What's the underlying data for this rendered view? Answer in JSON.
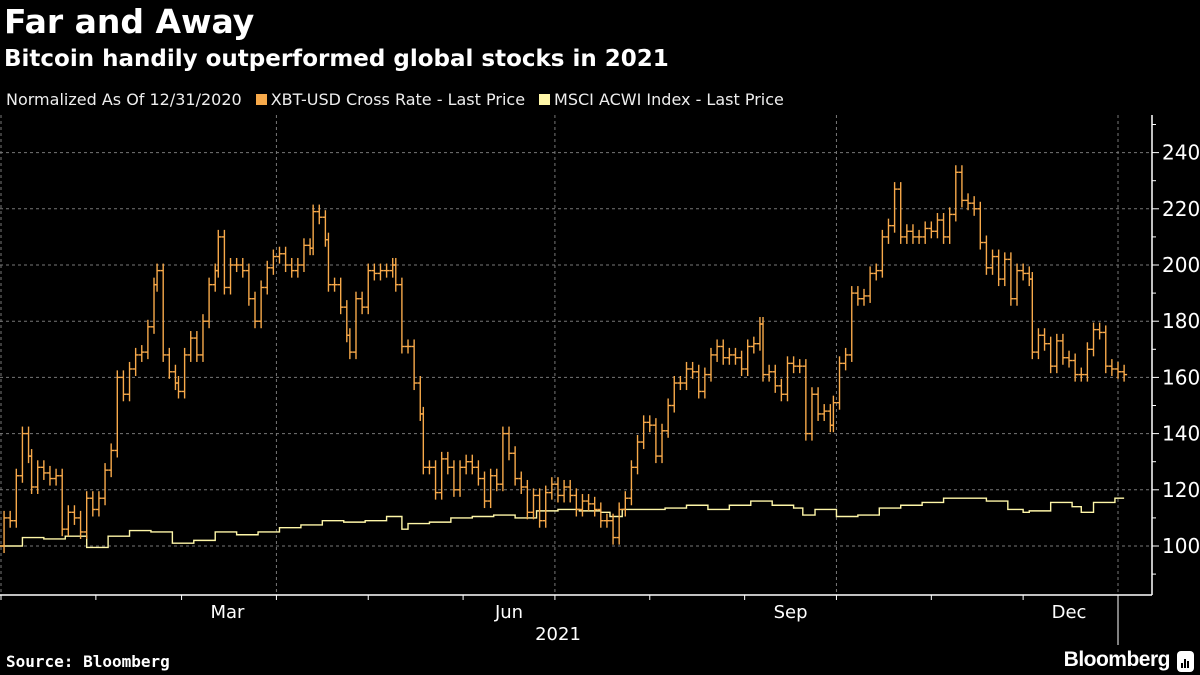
{
  "title": "Far and Away",
  "subtitle": "Bitcoin handily outperformed global stocks in 2021",
  "source": "Source: Bloomberg",
  "brand": "Bloomberg",
  "chart_data": {
    "type": "line",
    "legend_note": "Normalized As Of 12/31/2020",
    "legend_placement": "top-left",
    "grid": true,
    "x_tick_labels": [
      "Mar",
      "Jun",
      "Sep",
      "Dec"
    ],
    "x_year_label": "2021",
    "xlim": [
      "2020-12-31",
      "2022-01-04"
    ],
    "ylim": [
      82,
      253
    ],
    "y_ticks": [
      100,
      120,
      140,
      160,
      180,
      200,
      220,
      240
    ],
    "y_axis_side": "right",
    "series": [
      {
        "name": "XBT-USD Cross Rate - Last Price",
        "color": "#f7a94a",
        "style": "bars",
        "points": [
          [
            "2020-12-31",
            100
          ],
          [
            "2021-01-02",
            110
          ],
          [
            "2021-01-04",
            109
          ],
          [
            "2021-01-06",
            125
          ],
          [
            "2021-01-08",
            140
          ],
          [
            "2021-01-10",
            132
          ],
          [
            "2021-01-11",
            121
          ],
          [
            "2021-01-13",
            128
          ],
          [
            "2021-01-15",
            126
          ],
          [
            "2021-01-17",
            124
          ],
          [
            "2021-01-19",
            125
          ],
          [
            "2021-01-21",
            106
          ],
          [
            "2021-01-23",
            112
          ],
          [
            "2021-01-25",
            110
          ],
          [
            "2021-01-27",
            105
          ],
          [
            "2021-01-29",
            117
          ],
          [
            "2021-01-31",
            113
          ],
          [
            "2021-02-02",
            117
          ],
          [
            "2021-02-04",
            127
          ],
          [
            "2021-02-06",
            134
          ],
          [
            "2021-02-08",
            160
          ],
          [
            "2021-02-10",
            154
          ],
          [
            "2021-02-12",
            163
          ],
          [
            "2021-02-14",
            168
          ],
          [
            "2021-02-16",
            169
          ],
          [
            "2021-02-18",
            178
          ],
          [
            "2021-02-20",
            193
          ],
          [
            "2021-02-21",
            198
          ],
          [
            "2021-02-23",
            168
          ],
          [
            "2021-02-25",
            162
          ],
          [
            "2021-02-27",
            158
          ],
          [
            "2021-02-28",
            155
          ],
          [
            "2021-03-02",
            168
          ],
          [
            "2021-03-04",
            174
          ],
          [
            "2021-03-06",
            168
          ],
          [
            "2021-03-08",
            180
          ],
          [
            "2021-03-10",
            193
          ],
          [
            "2021-03-12",
            198
          ],
          [
            "2021-03-13",
            210
          ],
          [
            "2021-03-15",
            192
          ],
          [
            "2021-03-17",
            200
          ],
          [
            "2021-03-19",
            200
          ],
          [
            "2021-03-21",
            198
          ],
          [
            "2021-03-23",
            188
          ],
          [
            "2021-03-25",
            180
          ],
          [
            "2021-03-27",
            192
          ],
          [
            "2021-03-29",
            199
          ],
          [
            "2021-03-31",
            203
          ],
          [
            "2021-04-02",
            204
          ],
          [
            "2021-04-04",
            200
          ],
          [
            "2021-04-06",
            198
          ],
          [
            "2021-04-08",
            200
          ],
          [
            "2021-04-10",
            207
          ],
          [
            "2021-04-12",
            206
          ],
          [
            "2021-04-13",
            219
          ],
          [
            "2021-04-15",
            217
          ],
          [
            "2021-04-17",
            209
          ],
          [
            "2021-04-18",
            193
          ],
          [
            "2021-04-20",
            193
          ],
          [
            "2021-04-22",
            185
          ],
          [
            "2021-04-24",
            175
          ],
          [
            "2021-04-25",
            169
          ],
          [
            "2021-04-27",
            188
          ],
          [
            "2021-04-29",
            185
          ],
          [
            "2021-05-01",
            198
          ],
          [
            "2021-05-03",
            197
          ],
          [
            "2021-05-05",
            198
          ],
          [
            "2021-05-07",
            198
          ],
          [
            "2021-05-09",
            200
          ],
          [
            "2021-05-10",
            193
          ],
          [
            "2021-05-12",
            171
          ],
          [
            "2021-05-14",
            171
          ],
          [
            "2021-05-16",
            158
          ],
          [
            "2021-05-18",
            147
          ],
          [
            "2021-05-19",
            128
          ],
          [
            "2021-05-21",
            128
          ],
          [
            "2021-05-23",
            119
          ],
          [
            "2021-05-25",
            131
          ],
          [
            "2021-05-27",
            128
          ],
          [
            "2021-05-29",
            120
          ],
          [
            "2021-05-31",
            128
          ],
          [
            "2021-06-02",
            130
          ],
          [
            "2021-06-04",
            128
          ],
          [
            "2021-06-06",
            124
          ],
          [
            "2021-06-08",
            116
          ],
          [
            "2021-06-10",
            125
          ],
          [
            "2021-06-12",
            122
          ],
          [
            "2021-06-14",
            140
          ],
          [
            "2021-06-16",
            133
          ],
          [
            "2021-06-18",
            124
          ],
          [
            "2021-06-20",
            121
          ],
          [
            "2021-06-22",
            112
          ],
          [
            "2021-06-24",
            118
          ],
          [
            "2021-06-26",
            109
          ],
          [
            "2021-06-28",
            119
          ],
          [
            "2021-06-30",
            122
          ],
          [
            "2021-07-02",
            118
          ],
          [
            "2021-07-04",
            121
          ],
          [
            "2021-07-06",
            118
          ],
          [
            "2021-07-08",
            113
          ],
          [
            "2021-07-10",
            116
          ],
          [
            "2021-07-12",
            115
          ],
          [
            "2021-07-14",
            113
          ],
          [
            "2021-07-16",
            109
          ],
          [
            "2021-07-18",
            109
          ],
          [
            "2021-07-20",
            103
          ],
          [
            "2021-07-22",
            113
          ],
          [
            "2021-07-24",
            117
          ],
          [
            "2021-07-26",
            128
          ],
          [
            "2021-07-28",
            137
          ],
          [
            "2021-07-30",
            144
          ],
          [
            "2021-08-01",
            143
          ],
          [
            "2021-08-03",
            132
          ],
          [
            "2021-08-05",
            141
          ],
          [
            "2021-08-07",
            150
          ],
          [
            "2021-08-09",
            158
          ],
          [
            "2021-08-11",
            158
          ],
          [
            "2021-08-13",
            163
          ],
          [
            "2021-08-15",
            162
          ],
          [
            "2021-08-17",
            155
          ],
          [
            "2021-08-19",
            161
          ],
          [
            "2021-08-21",
            168
          ],
          [
            "2021-08-23",
            171
          ],
          [
            "2021-08-25",
            167
          ],
          [
            "2021-08-27",
            168
          ],
          [
            "2021-08-29",
            167
          ],
          [
            "2021-08-31",
            163
          ],
          [
            "2021-09-02",
            171
          ],
          [
            "2021-09-04",
            172
          ],
          [
            "2021-09-06",
            179
          ],
          [
            "2021-09-07",
            161
          ],
          [
            "2021-09-09",
            162
          ],
          [
            "2021-09-11",
            157
          ],
          [
            "2021-09-13",
            154
          ],
          [
            "2021-09-15",
            165
          ],
          [
            "2021-09-17",
            164
          ],
          [
            "2021-09-19",
            164
          ],
          [
            "2021-09-21",
            140
          ],
          [
            "2021-09-23",
            154
          ],
          [
            "2021-09-25",
            147
          ],
          [
            "2021-09-27",
            148
          ],
          [
            "2021-09-29",
            143
          ],
          [
            "2021-09-30",
            151
          ],
          [
            "2021-10-02",
            165
          ],
          [
            "2021-10-04",
            168
          ],
          [
            "2021-10-06",
            190
          ],
          [
            "2021-10-08",
            188
          ],
          [
            "2021-10-10",
            189
          ],
          [
            "2021-10-12",
            197
          ],
          [
            "2021-10-14",
            198
          ],
          [
            "2021-10-16",
            210
          ],
          [
            "2021-10-18",
            214
          ],
          [
            "2021-10-20",
            227
          ],
          [
            "2021-10-22",
            210
          ],
          [
            "2021-10-24",
            212
          ],
          [
            "2021-10-26",
            210
          ],
          [
            "2021-10-28",
            210
          ],
          [
            "2021-10-30",
            213
          ],
          [
            "2021-11-01",
            212
          ],
          [
            "2021-11-03",
            216
          ],
          [
            "2021-11-05",
            210
          ],
          [
            "2021-11-07",
            218
          ],
          [
            "2021-11-09",
            233
          ],
          [
            "2021-11-11",
            223
          ],
          [
            "2021-11-13",
            222
          ],
          [
            "2021-11-15",
            220
          ],
          [
            "2021-11-17",
            208
          ],
          [
            "2021-11-19",
            199
          ],
          [
            "2021-11-21",
            203
          ],
          [
            "2021-11-23",
            195
          ],
          [
            "2021-11-25",
            202
          ],
          [
            "2021-11-27",
            188
          ],
          [
            "2021-11-29",
            198
          ],
          [
            "2021-12-01",
            197
          ],
          [
            "2021-12-03",
            195
          ],
          [
            "2021-12-04",
            169
          ],
          [
            "2021-12-06",
            175
          ],
          [
            "2021-12-08",
            172
          ],
          [
            "2021-12-10",
            164
          ],
          [
            "2021-12-12",
            173
          ],
          [
            "2021-12-14",
            167
          ],
          [
            "2021-12-16",
            166
          ],
          [
            "2021-12-18",
            161
          ],
          [
            "2021-12-20",
            161
          ],
          [
            "2021-12-22",
            170
          ],
          [
            "2021-12-24",
            177
          ],
          [
            "2021-12-26",
            176
          ],
          [
            "2021-12-28",
            164
          ],
          [
            "2021-12-30",
            163
          ],
          [
            "2022-01-01",
            162
          ],
          [
            "2022-01-03",
            161
          ]
        ]
      },
      {
        "name": "MSCI ACWI Index - Last Price",
        "color": "#fff7a8",
        "style": "step",
        "points": [
          [
            "2020-12-31",
            100
          ],
          [
            "2021-01-08",
            103
          ],
          [
            "2021-01-15",
            102.5
          ],
          [
            "2021-01-22",
            103.5
          ],
          [
            "2021-01-29",
            99.5
          ],
          [
            "2021-02-05",
            103.5
          ],
          [
            "2021-02-12",
            105.5
          ],
          [
            "2021-02-19",
            105
          ],
          [
            "2021-02-26",
            101
          ],
          [
            "2021-03-05",
            102
          ],
          [
            "2021-03-12",
            105
          ],
          [
            "2021-03-19",
            104
          ],
          [
            "2021-03-26",
            105
          ],
          [
            "2021-04-02",
            106.5
          ],
          [
            "2021-04-09",
            107.5
          ],
          [
            "2021-04-16",
            109
          ],
          [
            "2021-04-23",
            108.5
          ],
          [
            "2021-04-30",
            109
          ],
          [
            "2021-05-07",
            110.5
          ],
          [
            "2021-05-12",
            106
          ],
          [
            "2021-05-14",
            108
          ],
          [
            "2021-05-21",
            108.5
          ],
          [
            "2021-05-28",
            110
          ],
          [
            "2021-06-04",
            110.5
          ],
          [
            "2021-06-11",
            111
          ],
          [
            "2021-06-18",
            110
          ],
          [
            "2021-06-25",
            112.5
          ],
          [
            "2021-07-02",
            113
          ],
          [
            "2021-07-09",
            112.5
          ],
          [
            "2021-07-16",
            112
          ],
          [
            "2021-07-19",
            110.5
          ],
          [
            "2021-07-23",
            113
          ],
          [
            "2021-07-30",
            113
          ],
          [
            "2021-08-06",
            113.5
          ],
          [
            "2021-08-13",
            114.5
          ],
          [
            "2021-08-20",
            113
          ],
          [
            "2021-08-27",
            114.5
          ],
          [
            "2021-09-03",
            116
          ],
          [
            "2021-09-10",
            114.5
          ],
          [
            "2021-09-17",
            113.5
          ],
          [
            "2021-09-20",
            111
          ],
          [
            "2021-09-24",
            113
          ],
          [
            "2021-10-01",
            110.5
          ],
          [
            "2021-10-08",
            111
          ],
          [
            "2021-10-15",
            113.5
          ],
          [
            "2021-10-22",
            114.5
          ],
          [
            "2021-10-29",
            115.5
          ],
          [
            "2021-11-05",
            117
          ],
          [
            "2021-11-12",
            117
          ],
          [
            "2021-11-19",
            116
          ],
          [
            "2021-11-26",
            113
          ],
          [
            "2021-12-01",
            112
          ],
          [
            "2021-12-03",
            112.5
          ],
          [
            "2021-12-10",
            115.5
          ],
          [
            "2021-12-17",
            114
          ],
          [
            "2021-12-20",
            112
          ],
          [
            "2021-12-24",
            115.5
          ],
          [
            "2021-12-31",
            117
          ],
          [
            "2022-01-03",
            117
          ]
        ]
      }
    ]
  }
}
